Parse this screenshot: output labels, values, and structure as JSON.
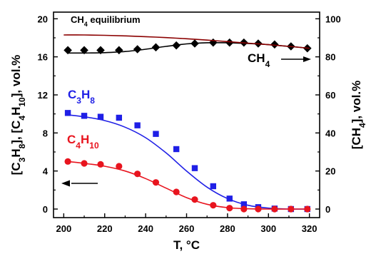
{
  "chart_data": {
    "type": "line",
    "xlabel": "T, °C",
    "ylabel_left": "[C3H8], [C4H10], vol.%",
    "ylabel_right": "[CH4], vol.%",
    "xlim": [
      195,
      325
    ],
    "ylim_left": [
      -0.9,
      20.7
    ],
    "ylim_right": [
      -4.5,
      103.5
    ],
    "x_ticks": [
      200,
      220,
      240,
      260,
      280,
      300,
      320
    ],
    "y_left_ticks": [
      0,
      4,
      8,
      12,
      16,
      20
    ],
    "y_right_ticks": [
      0,
      20,
      40,
      60,
      80,
      100
    ],
    "grid": false,
    "colors": {
      "c3h8": "#1f1fe6",
      "c4h10": "#e8141e",
      "ch4": "#000000",
      "equilibrium": "#8b0000"
    },
    "annotations": {
      "equilibrium_label": "CH4 equilibrium",
      "ch4_label": "CH4",
      "c3h8_label": "C3H8",
      "c4h10_label": "C4H10"
    },
    "series": [
      {
        "name": "C3H8",
        "axis": "left",
        "kind": "points+fit",
        "x": [
          202,
          210,
          218,
          227,
          236,
          245,
          255,
          264,
          273,
          281,
          288,
          295,
          303,
          311,
          319
        ],
        "y": [
          10.1,
          9.8,
          9.7,
          9.6,
          8.8,
          7.9,
          6.3,
          4.3,
          2.4,
          1.1,
          0.5,
          0.2,
          0.05,
          0.0,
          0.0
        ],
        "fit_x": [
          202,
          210,
          220,
          230,
          240,
          250,
          260,
          270,
          280,
          290,
          300,
          310,
          320
        ],
        "fit_y": [
          9.9,
          9.7,
          9.3,
          8.6,
          7.5,
          5.9,
          4.0,
          2.3,
          1.1,
          0.4,
          0.1,
          0.0,
          0.0
        ]
      },
      {
        "name": "C4H10",
        "axis": "left",
        "kind": "points+fit",
        "x": [
          202,
          210,
          218,
          227,
          236,
          245,
          255,
          264,
          273,
          281,
          288,
          295,
          303,
          311,
          319
        ],
        "y": [
          5.0,
          4.8,
          4.7,
          4.5,
          3.7,
          2.8,
          1.8,
          1.0,
          0.4,
          0.1,
          0.0,
          0.0,
          0.0,
          0.0,
          0.0
        ],
        "fit_x": [
          202,
          210,
          220,
          230,
          240,
          250,
          260,
          270,
          280,
          290,
          300,
          310,
          320
        ],
        "fit_y": [
          5.0,
          4.8,
          4.5,
          4.0,
          3.2,
          2.2,
          1.2,
          0.5,
          0.15,
          0.03,
          0.0,
          0.0,
          0.0
        ],
        "arrow": "left"
      },
      {
        "name": "CH4",
        "axis": "right",
        "kind": "points+fit",
        "x": [
          202,
          210,
          218,
          227,
          236,
          245,
          255,
          264,
          273,
          281,
          288,
          295,
          303,
          311,
          319
        ],
        "y": [
          83.5,
          83.5,
          83.5,
          83.5,
          84.0,
          85.0,
          86.0,
          87.0,
          87.5,
          87.5,
          87.5,
          87.0,
          86.5,
          85.5,
          84.5
        ],
        "fit_x": [
          202,
          210,
          220,
          230,
          240,
          250,
          260,
          270,
          280,
          290,
          300,
          310,
          320
        ],
        "fit_y": [
          82.0,
          82.0,
          82.2,
          82.8,
          84.0,
          85.5,
          86.8,
          87.4,
          87.4,
          87.0,
          86.4,
          85.5,
          84.5
        ],
        "arrow": "right"
      },
      {
        "name": "CH4 equilibrium",
        "axis": "right",
        "kind": "line",
        "x": [
          200,
          210,
          220,
          230,
          240,
          250,
          260,
          270,
          280,
          290,
          300,
          310,
          320
        ],
        "y": [
          91.5,
          91.5,
          91.3,
          91.0,
          90.6,
          90.1,
          89.5,
          88.8,
          88.0,
          87.2,
          86.4,
          85.5,
          84.5
        ]
      }
    ]
  }
}
